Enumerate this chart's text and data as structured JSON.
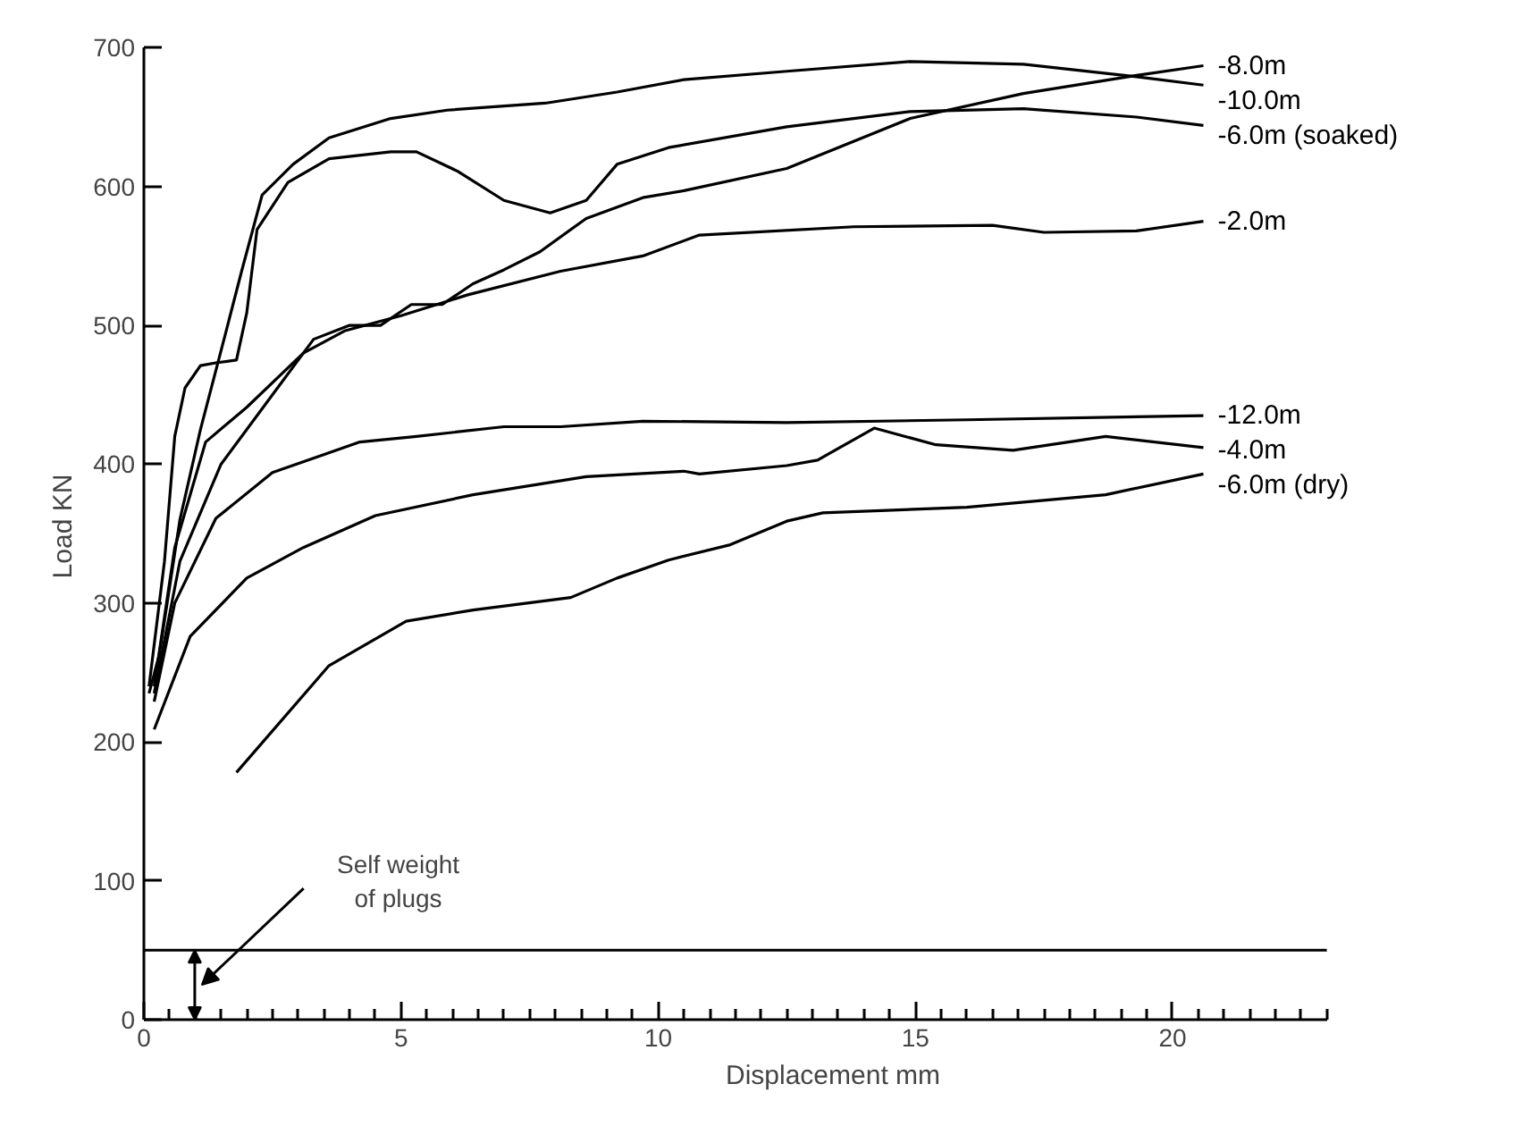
{
  "chart_data": {
    "type": "line",
    "xlabel": "Displacement mm",
    "ylabel": "Load KN",
    "xlim": [
      0,
      23
    ],
    "ylim": [
      0,
      700
    ],
    "xticks": [
      0,
      {
        "value": 0.5,
        "label": null
      },
      {
        "value": 1,
        "label": null
      },
      {
        "value": 1.5,
        "label": null
      },
      {
        "value": 2,
        "label": null
      },
      {
        "value": 2.5,
        "label": null
      },
      {
        "value": 3,
        "label": null
      },
      {
        "value": 3.5,
        "label": null
      },
      {
        "value": 4,
        "label": null
      },
      {
        "value": 4.5,
        "label": null
      },
      5,
      {
        "value": 5.5,
        "label": null
      },
      {
        "value": 6,
        "label": null
      },
      {
        "value": 6.5,
        "label": null
      },
      {
        "value": 7,
        "label": null
      },
      {
        "value": 7.5,
        "label": null
      },
      {
        "value": 8,
        "label": null
      },
      {
        "value": 8.5,
        "label": null
      },
      {
        "value": 9,
        "label": null
      },
      {
        "value": 9.5,
        "label": null
      },
      10,
      {
        "value": 10.5,
        "label": null
      },
      {
        "value": 11,
        "label": null
      },
      {
        "value": 11.5,
        "label": null
      },
      {
        "value": 12,
        "label": null
      },
      {
        "value": 12.5,
        "label": null
      },
      {
        "value": 13,
        "label": null
      },
      {
        "value": 13.5,
        "label": null
      },
      {
        "value": 14,
        "label": null
      },
      {
        "value": 14.5,
        "label": null
      },
      15,
      {
        "value": 15.5,
        "label": null
      },
      {
        "value": 16,
        "label": null
      },
      {
        "value": 16.5,
        "label": null
      },
      {
        "value": 17,
        "label": null
      },
      {
        "value": 17.5,
        "label": null
      },
      {
        "value": 18,
        "label": null
      },
      {
        "value": 18.5,
        "label": null
      },
      {
        "value": 19,
        "label": null
      },
      {
        "value": 19.5,
        "label": null
      },
      20,
      {
        "value": 20.5,
        "label": null
      },
      {
        "value": 21,
        "label": null
      },
      {
        "value": 21.5,
        "label": null
      },
      {
        "value": 22,
        "label": null
      },
      {
        "value": 22.5,
        "label": null
      },
      {
        "value": 23,
        "label": null
      }
    ],
    "yticks": [
      0,
      100,
      200,
      300,
      400,
      500,
      600,
      700
    ],
    "grid": false,
    "legend": false,
    "marker": "none",
    "line_style": "solid",
    "series": [
      {
        "name": "-8.0m",
        "color": "#000000",
        "x": [
          0.2,
          0.7,
          1.5,
          2.5,
          3.3,
          4.0,
          4.6,
          5.2,
          5.8,
          6.4,
          7.0,
          7.7,
          8.6,
          9.7,
          10.5,
          12.5,
          14.9,
          17.1,
          19.3,
          20.6
        ],
        "values": [
          235,
          330,
          400,
          450,
          490,
          500,
          500,
          515,
          515,
          530,
          540,
          553,
          577,
          592,
          597,
          613,
          649,
          667,
          680,
          687
        ]
      },
      {
        "name": "-10.0m",
        "color": "#000000",
        "x": [
          0.1,
          0.3,
          0.7,
          1.1,
          1.6,
          1.9,
          2.3,
          2.9,
          3.6,
          4.8,
          5.9,
          7.8,
          9.2,
          10.5,
          12.5,
          14.9,
          17.1,
          19.3,
          20.6
        ],
        "values": [
          235,
          263,
          360,
          425,
          496,
          539,
          594,
          616,
          635,
          649,
          655,
          660,
          668,
          677,
          683,
          690,
          688,
          679,
          673
        ]
      },
      {
        "name": "-6.0m (soaked)",
        "color": "#000000",
        "x": [
          0.1,
          0.4,
          0.6,
          0.8,
          1.1,
          1.4,
          1.8,
          2.0,
          2.2,
          2.8,
          3.6,
          4.8,
          5.3,
          6.1,
          7.0,
          7.9,
          8.6,
          9.2,
          10.2,
          12.5,
          14.9,
          17.1,
          19.3,
          20.6
        ],
        "values": [
          240,
          330,
          420,
          455,
          471,
          473,
          475,
          509,
          569,
          603,
          620,
          625,
          625,
          611,
          590,
          581,
          590,
          616,
          628,
          643,
          654,
          656,
          650,
          644
        ]
      },
      {
        "name": "-2.0m",
        "color": "#000000",
        "x": [
          0.2,
          0.6,
          1.2,
          2.0,
          3.1,
          3.9,
          5.0,
          6.3,
          8.1,
          9.7,
          10.8,
          13.8,
          16.5,
          17.5,
          19.3,
          20.6
        ],
        "values": [
          240,
          340,
          416,
          441,
          480,
          496,
          507,
          522,
          539,
          550,
          565,
          571,
          572,
          567,
          568,
          575
        ]
      },
      {
        "name": "-12.0m",
        "color": "#000000",
        "x": [
          0.2,
          0.6,
          1.4,
          2.5,
          4.2,
          5.3,
          7.0,
          8.1,
          9.7,
          12.5,
          16.0,
          20.6
        ],
        "values": [
          229,
          300,
          361,
          394,
          416,
          420,
          427,
          427,
          431,
          430,
          432,
          435
        ]
      },
      {
        "name": "-4.0m",
        "color": "#000000",
        "x": [
          0.2,
          0.9,
          2.0,
          3.1,
          4.5,
          6.4,
          8.6,
          10.5,
          10.8,
          12.5,
          13.1,
          14.2,
          15.4,
          16.9,
          18.7,
          20.6
        ],
        "values": [
          209,
          276,
          318,
          340,
          363,
          378,
          391,
          395,
          393,
          399,
          403,
          426,
          414,
          410,
          420,
          412
        ]
      },
      {
        "name": "-6.0m (dry)",
        "color": "#000000",
        "x": [
          1.8,
          3.6,
          5.1,
          6.4,
          8.3,
          9.2,
          10.2,
          11.4,
          12.5,
          13.2,
          16.0,
          18.7,
          20.6
        ],
        "values": [
          178,
          255,
          287,
          295,
          304,
          318,
          331,
          342,
          359,
          365,
          369,
          378,
          393
        ]
      }
    ],
    "ref_lines": [
      {
        "axis": "y",
        "value": 50,
        "label": null
      }
    ],
    "annotations": [
      "Self weight\nof plugs"
    ]
  }
}
